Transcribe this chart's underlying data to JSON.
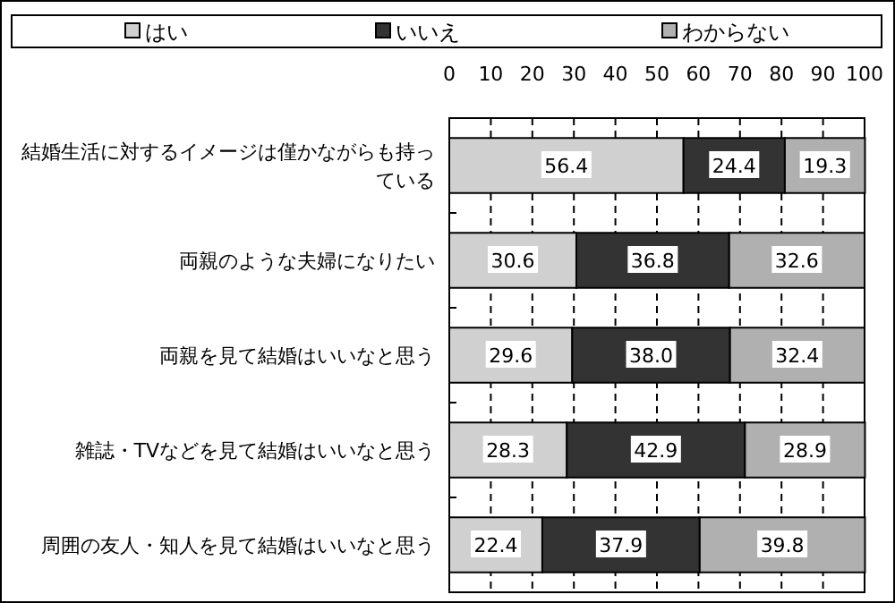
{
  "chart_data": {
    "type": "bar",
    "orientation": "horizontal",
    "stacked": true,
    "grid": "x",
    "legend": "top",
    "categories": [
      "結婚生活に対するイメージは僅かながらも持っている",
      "両親のような夫婦になりたい",
      "両親を見て結婚はいいなと思う",
      "雑誌・TVなどを見て結婚はいいなと思う",
      "周囲の友人・知人を見て結婚はいいなと思う"
    ],
    "series": [
      {
        "name": "はい",
        "color": "#d0d0d0",
        "values": [
          56.4,
          30.6,
          29.6,
          28.3,
          22.4
        ]
      },
      {
        "name": "いいえ",
        "color": "#333333",
        "values": [
          24.4,
          36.8,
          38.0,
          42.9,
          37.9
        ]
      },
      {
        "name": "わからない",
        "color": "#b0b0b0",
        "values": [
          19.3,
          32.6,
          32.4,
          28.9,
          39.8
        ]
      }
    ],
    "value_labels": [
      [
        "56.4",
        "30.6",
        "29.6",
        "28.3",
        "22.4"
      ],
      [
        "24.4",
        "36.8",
        "38.0",
        "42.9",
        "37.9"
      ],
      [
        "19.3",
        "32.6",
        "32.4",
        "28.9",
        "39.8"
      ]
    ],
    "xlim": [
      0,
      100
    ],
    "xticks": [
      0,
      10,
      20,
      30,
      40,
      50,
      60,
      70,
      80,
      90,
      100
    ]
  }
}
